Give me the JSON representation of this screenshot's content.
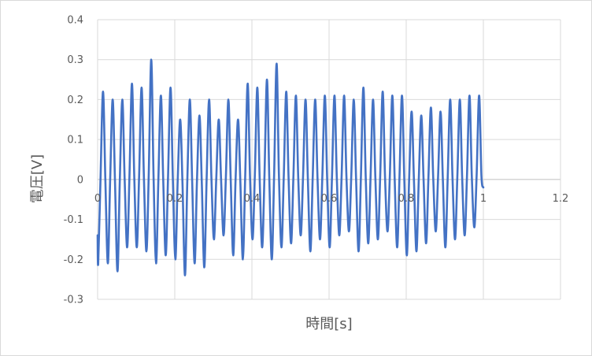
{
  "chart_data": {
    "type": "line",
    "title": "",
    "xlabel": "時間[s]",
    "ylabel": "電圧[V]",
    "xlim": [
      0,
      1.2
    ],
    "ylim": [
      -0.3,
      0.4
    ],
    "x_ticks": [
      0,
      0.2,
      0.4,
      0.6,
      0.8,
      1,
      1.2
    ],
    "x_tick_labels": [
      "0",
      "0.2",
      "0.4",
      "0.6",
      "0.8",
      "1",
      "1.2"
    ],
    "y_ticks": [
      0.4,
      0.3,
      0.2,
      0.1,
      0,
      -0.1,
      -0.2,
      -0.3
    ],
    "y_tick_labels": [
      "0.4",
      "0.3",
      "0.2",
      "0.1",
      "0",
      "-0.1",
      "-0.2",
      "-0.3"
    ],
    "grid": true,
    "legend": "none",
    "series_color": "#4472c4",
    "series": [
      {
        "name": "",
        "x_range": [
          0,
          1
        ],
        "cycles": 40,
        "peaks": [
          0.22,
          0.2,
          0.2,
          0.24,
          0.23,
          0.3,
          0.21,
          0.23,
          0.15,
          0.2,
          0.16,
          0.2,
          0.15,
          0.2,
          0.15,
          0.24,
          0.23,
          0.25,
          0.29,
          0.22,
          0.21,
          0.2,
          0.2,
          0.21,
          0.21,
          0.21,
          0.2,
          0.23,
          0.2,
          0.22,
          0.21,
          0.21,
          0.17,
          0.16,
          0.18,
          0.17,
          0.2,
          0.2,
          0.21,
          0.21
        ],
        "troughs": [
          -0.21,
          -0.21,
          -0.23,
          -0.17,
          -0.17,
          -0.18,
          -0.21,
          -0.19,
          -0.2,
          -0.24,
          -0.21,
          -0.22,
          -0.15,
          -0.14,
          -0.19,
          -0.2,
          -0.15,
          -0.17,
          -0.2,
          -0.17,
          -0.16,
          -0.14,
          -0.18,
          -0.15,
          -0.17,
          -0.14,
          -0.13,
          -0.18,
          -0.16,
          -0.15,
          -0.13,
          -0.17,
          -0.19,
          -0.18,
          -0.16,
          -0.13,
          -0.17,
          -0.15,
          -0.14,
          -0.12
        ],
        "start_value": -0.14,
        "end_value": -0.02
      }
    ]
  }
}
